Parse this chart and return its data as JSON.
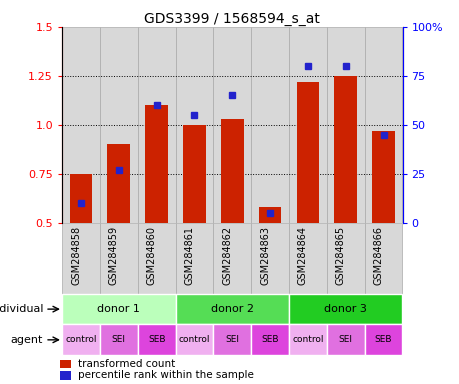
{
  "title": "GDS3399 / 1568594_s_at",
  "samples": [
    "GSM284858",
    "GSM284859",
    "GSM284860",
    "GSM284861",
    "GSM284862",
    "GSM284863",
    "GSM284864",
    "GSM284865",
    "GSM284866"
  ],
  "red_values": [
    0.75,
    0.9,
    1.1,
    1.0,
    1.03,
    0.58,
    1.22,
    1.25,
    0.97
  ],
  "blue_values": [
    10,
    27,
    60,
    55,
    65,
    5,
    80,
    80,
    45
  ],
  "ylim_left": [
    0.5,
    1.5
  ],
  "ylim_right": [
    0,
    100
  ],
  "yticks_left": [
    0.5,
    0.75,
    1.0,
    1.25,
    1.5
  ],
  "yticks_right": [
    0,
    25,
    50,
    75,
    100
  ],
  "ytick_labels_right": [
    "0",
    "25",
    "50",
    "75",
    "100%"
  ],
  "bar_color": "#cc2200",
  "square_color": "#2222cc",
  "grid_color": "black",
  "individuals": [
    {
      "label": "donor 1",
      "start": 0,
      "end": 3,
      "color": "#bbffbb"
    },
    {
      "label": "donor 2",
      "start": 3,
      "end": 6,
      "color": "#55dd55"
    },
    {
      "label": "donor 3",
      "start": 6,
      "end": 9,
      "color": "#22cc22"
    }
  ],
  "agents": [
    "control",
    "SEI",
    "SEB",
    "control",
    "SEI",
    "SEB",
    "control",
    "SEI",
    "SEB"
  ],
  "agent_map": {
    "control": "#f0b0f0",
    "SEI": "#e070e0",
    "SEB": "#dd44dd"
  },
  "legend_items": [
    {
      "label": "transformed count",
      "color": "#cc2200"
    },
    {
      "label": "percentile rank within the sample",
      "color": "#2222cc"
    }
  ],
  "individual_label": "individual",
  "agent_label": "agent",
  "col_bg_color": "#d8d8d8",
  "col_border_color": "#aaaaaa"
}
